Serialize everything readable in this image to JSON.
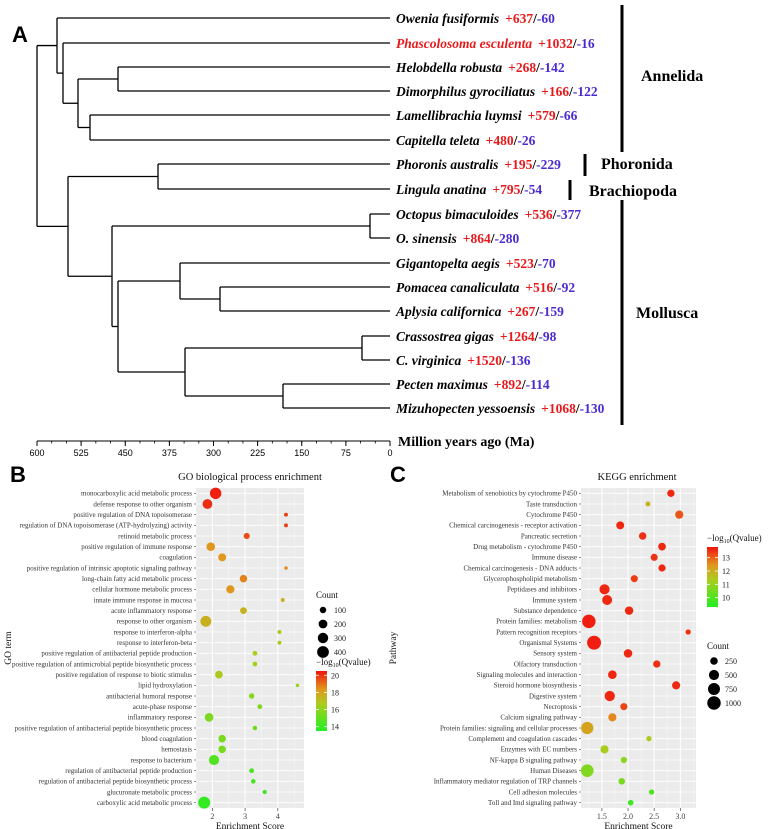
{
  "chart_data": [
    {
      "type": "other",
      "panel": "A",
      "description_kind": "phylogenetic tree with gene family gain/loss counts",
      "axis_title": "Million years ago (Ma)",
      "axis_ticks": [
        600,
        525,
        450,
        375,
        300,
        225,
        150,
        75,
        0
      ],
      "taxa": [
        {
          "name": "Owenia fusiformis",
          "gain": "+637",
          "loss": "-60",
          "highlight": false
        },
        {
          "name": "Phascolosoma esculenta",
          "gain": "+1032",
          "loss": "-16",
          "highlight": true
        },
        {
          "name": "Helobdella robusta",
          "gain": "+268",
          "loss": "-142",
          "highlight": false
        },
        {
          "name": "Dimorphilus gyrociliatus",
          "gain": "+166",
          "loss": "-122",
          "highlight": false
        },
        {
          "name": "Lamellibrachia luymsi",
          "gain": "+579",
          "loss": "-66",
          "highlight": false
        },
        {
          "name": "Capitella teleta",
          "gain": "+480",
          "loss": "-26",
          "highlight": false
        },
        {
          "name": "Phoronis australis",
          "gain": "+195",
          "loss": "-229",
          "highlight": false
        },
        {
          "name": "Lingula anatina",
          "gain": "+795",
          "loss": "-54",
          "highlight": false
        },
        {
          "name": "Octopus bimaculoides",
          "gain": "+536",
          "loss": "-377",
          "highlight": false
        },
        {
          "name": "O. sinensis",
          "gain": "+864",
          "loss": "-280",
          "highlight": false
        },
        {
          "name": "Gigantopelta aegis",
          "gain": "+523",
          "loss": "-70",
          "highlight": false
        },
        {
          "name": "Pomacea canaliculata",
          "gain": "+516",
          "loss": "-92",
          "highlight": false
        },
        {
          "name": "Aplysia californica",
          "gain": "+267",
          "loss": "-159",
          "highlight": false
        },
        {
          "name": "Crassostrea gigas",
          "gain": "+1264",
          "loss": "-98",
          "highlight": false
        },
        {
          "name": "C. virginica",
          "gain": "+1520",
          "loss": "-136",
          "highlight": false
        },
        {
          "name": "Pecten maximus",
          "gain": "+892",
          "loss": "-114",
          "highlight": false
        },
        {
          "name": "Mizuhopecten yessoensis",
          "gain": "+1068",
          "loss": "-130",
          "highlight": false
        }
      ],
      "groups": [
        {
          "name": "Annelida",
          "from_taxon": 0,
          "to_taxon": 5
        },
        {
          "name": "Phoronida",
          "from_taxon": 6,
          "to_taxon": 6
        },
        {
          "name": "Brachiopoda",
          "from_taxon": 7,
          "to_taxon": 7
        },
        {
          "name": "Mollusca",
          "from_taxon": 8,
          "to_taxon": 16
        }
      ]
    },
    {
      "type": "scatter",
      "panel": "B",
      "title": "GO biological process enrichment",
      "xlabel": "Enrichment Score",
      "ylabel": "GO term",
      "xlim": [
        1.5,
        4.8
      ],
      "x_ticks": [
        2,
        3,
        4
      ],
      "size_legend": {
        "title": "Count",
        "values": [
          100,
          200,
          300,
          400
        ],
        "range": [
          30,
          450
        ]
      },
      "color_legend": {
        "title": "−log",
        "subscript": "10",
        "title_suffix": "(Qvalue)",
        "ticks": [
          20,
          18,
          16,
          14
        ],
        "range": [
          13.5,
          20.5
        ]
      },
      "points": [
        {
          "term": "monocarboxylic acid metabolic process",
          "x": 2.1,
          "count": 370,
          "q": 20.3
        },
        {
          "term": "defense response to other organism",
          "x": 1.85,
          "count": 260,
          "q": 20.1
        },
        {
          "term": "positive regulation of DNA topoisomerase",
          "x": 4.25,
          "count": 40,
          "q": 19.8
        },
        {
          "term": "regulation of DNA topoisomerase (ATP-hydrolyzing) activity",
          "x": 4.25,
          "count": 40,
          "q": 19.8
        },
        {
          "term": "retinoid metabolic process",
          "x": 3.05,
          "count": 90,
          "q": 19.6
        },
        {
          "term": "positive regulation of immune response",
          "x": 1.95,
          "count": 190,
          "q": 18.4
        },
        {
          "term": "coagulation",
          "x": 2.3,
          "count": 160,
          "q": 18.3
        },
        {
          "term": "positive regulation of intrinsic apoptotic signaling pathway",
          "x": 4.25,
          "count": 35,
          "q": 18.6
        },
        {
          "term": "long-chain fatty acid metabolic process",
          "x": 2.95,
          "count": 140,
          "q": 18.7
        },
        {
          "term": "cellular hormone metabolic process",
          "x": 2.55,
          "count": 170,
          "q": 18.4
        },
        {
          "term": "innate immune response in mucosa",
          "x": 4.15,
          "count": 40,
          "q": 17.6
        },
        {
          "term": "acute inflammatory response",
          "x": 2.95,
          "count": 110,
          "q": 17.5
        },
        {
          "term": "response to other organism",
          "x": 1.8,
          "count": 330,
          "q": 17.6
        },
        {
          "term": "response to interferon-alpha",
          "x": 4.05,
          "count": 40,
          "q": 16.9
        },
        {
          "term": "response to interferon-beta",
          "x": 4.05,
          "count": 40,
          "q": 16.9
        },
        {
          "term": "positive regulation of antibacterial peptide production",
          "x": 3.3,
          "count": 55,
          "q": 16.6
        },
        {
          "term": "positive regulation of antimicrobial peptide biosynthetic process",
          "x": 3.3,
          "count": 55,
          "q": 16.5
        },
        {
          "term": "positive regulation of response to biotic stimulus",
          "x": 2.2,
          "count": 150,
          "q": 16.8
        },
        {
          "term": "lipid hydroxylation",
          "x": 4.6,
          "count": 35,
          "q": 16.2
        },
        {
          "term": "antibacterial humoral response",
          "x": 3.2,
          "count": 70,
          "q": 15.8
        },
        {
          "term": "acute-phase response",
          "x": 3.45,
          "count": 55,
          "q": 15.6
        },
        {
          "term": "inflammatory response",
          "x": 1.9,
          "count": 200,
          "q": 15.6
        },
        {
          "term": "positive regulation of antibacterial peptide biosynthetic process",
          "x": 3.3,
          "count": 50,
          "q": 15.3
        },
        {
          "term": "blood coagulation",
          "x": 2.3,
          "count": 140,
          "q": 15.5
        },
        {
          "term": "hemostasis",
          "x": 2.3,
          "count": 140,
          "q": 15.5
        },
        {
          "term": "response to bacterium",
          "x": 2.05,
          "count": 280,
          "q": 14.6
        },
        {
          "term": "regulation of antibacterial peptide production",
          "x": 3.2,
          "count": 55,
          "q": 14.4
        },
        {
          "term": "regulation of antibacterial peptide biosynthetic process",
          "x": 3.25,
          "count": 50,
          "q": 14.3
        },
        {
          "term": "glucuronate metabolic process",
          "x": 3.6,
          "count": 45,
          "q": 14.2
        },
        {
          "term": "carboxylic acid metabolic process",
          "x": 1.75,
          "count": 420,
          "q": 13.9
        }
      ]
    },
    {
      "type": "scatter",
      "panel": "C",
      "title": "KEGG enrichment",
      "xlabel": "Enrichment Score",
      "ylabel": "Pathway",
      "xlim": [
        1.1,
        3.3
      ],
      "x_ticks": [
        1.5,
        2.0,
        2.5,
        3.0
      ],
      "x_tick_labels": [
        "1.5",
        "2.0",
        "2.5",
        "3.0"
      ],
      "size_legend": {
        "title": "Count",
        "values": [
          250,
          500,
          750,
          1000
        ],
        "range": [
          80,
          1100
        ]
      },
      "color_legend": {
        "title": "−log",
        "subscript": "10",
        "title_suffix": "(Qvalue)",
        "ticks": [
          13,
          12,
          11,
          10
        ],
        "range": [
          9.3,
          13.8
        ]
      },
      "points": [
        {
          "term": "Metabolism of xenobiotics by cytochrome P450",
          "x": 2.82,
          "count": 230,
          "q": 13.6
        },
        {
          "term": "Taste transduction",
          "x": 2.38,
          "count": 110,
          "q": 11.8
        },
        {
          "term": "Cytochrome P450",
          "x": 2.98,
          "count": 300,
          "q": 13.1
        },
        {
          "term": "Chemical carcinogenesis - receptor activation",
          "x": 1.85,
          "count": 280,
          "q": 13.6
        },
        {
          "term": "Pancreatic secretion",
          "x": 2.28,
          "count": 240,
          "q": 13.5
        },
        {
          "term": "Drug metabolism - cytochrome P450",
          "x": 2.65,
          "count": 260,
          "q": 13.6
        },
        {
          "term": "Immune disease",
          "x": 2.5,
          "count": 210,
          "q": 13.5
        },
        {
          "term": "Chemical carcinogenesis - DNA adducts",
          "x": 2.65,
          "count": 220,
          "q": 13.6
        },
        {
          "term": "Glycerophospholipid metabolism",
          "x": 2.12,
          "count": 210,
          "q": 13.4
        },
        {
          "term": "Peptidases and inhibitors",
          "x": 1.55,
          "count": 500,
          "q": 13.6
        },
        {
          "term": "Immune system",
          "x": 1.6,
          "count": 480,
          "q": 13.6
        },
        {
          "term": "Substance dependence",
          "x": 2.02,
          "count": 320,
          "q": 13.6
        },
        {
          "term": "Protein families: metabolism",
          "x": 1.25,
          "count": 1000,
          "q": 13.7
        },
        {
          "term": "Pattern recognition receptors",
          "x": 3.15,
          "count": 120,
          "q": 13.5
        },
        {
          "term": "Organismal Systems",
          "x": 1.35,
          "count": 1080,
          "q": 13.7
        },
        {
          "term": "Sensory system",
          "x": 2.0,
          "count": 330,
          "q": 13.6
        },
        {
          "term": "Olfactory transduction",
          "x": 2.55,
          "count": 230,
          "q": 13.5
        },
        {
          "term": "Signaling molecules and interaction",
          "x": 1.7,
          "count": 340,
          "q": 13.6
        },
        {
          "term": "Steroid hormone biosynthesis",
          "x": 2.92,
          "count": 290,
          "q": 13.6
        },
        {
          "term": "Digestive system",
          "x": 1.65,
          "count": 520,
          "q": 13.6
        },
        {
          "term": "Necroptosis",
          "x": 1.92,
          "count": 210,
          "q": 13.3
        },
        {
          "term": "Calcium signaling pathway",
          "x": 1.7,
          "count": 300,
          "q": 12.6
        },
        {
          "term": "Protein families: signaling and cellular processes",
          "x": 1.22,
          "count": 800,
          "q": 12.2
        },
        {
          "term": "Complement and coagulation cascades",
          "x": 2.4,
          "count": 120,
          "q": 11.4
        },
        {
          "term": "Enzymes with EC numbers",
          "x": 1.55,
          "count": 300,
          "q": 11.3
        },
        {
          "term": "NF-kappa B signaling pathway",
          "x": 1.92,
          "count": 160,
          "q": 10.9
        },
        {
          "term": "Human Diseases",
          "x": 1.22,
          "count": 850,
          "q": 10.7
        },
        {
          "term": "Inflammatory mediator regulation of TRP channels",
          "x": 1.88,
          "count": 180,
          "q": 10.6
        },
        {
          "term": "Cell adhesion molecules",
          "x": 2.45,
          "count": 120,
          "q": 10.0
        },
        {
          "term": "Toll and Imd signaling pathway",
          "x": 2.05,
          "count": 130,
          "q": 9.7
        }
      ]
    }
  ],
  "panels": {
    "a_label": "A",
    "b_label": "B",
    "c_label": "C"
  }
}
